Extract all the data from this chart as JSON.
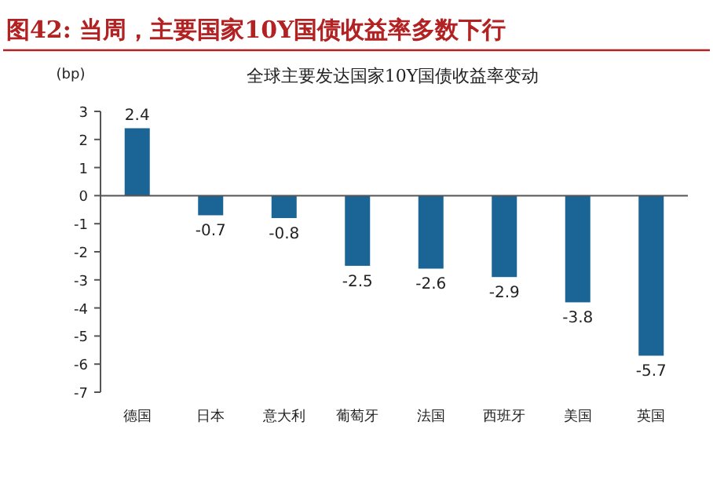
{
  "chart_data": {
    "type": "bar",
    "title": "图42: 当周，主要国家10Y国债收益率多数下行",
    "subtitle": "全球主要发达国家10Y国债收益率变动",
    "ylabel": "(bp)",
    "categories": [
      "德国",
      "日本",
      "意大利",
      "葡萄牙",
      "法国",
      "西班牙",
      "美国",
      "英国"
    ],
    "values": [
      2.4,
      -0.7,
      -0.8,
      -2.5,
      -2.6,
      -2.9,
      -3.8,
      -5.7
    ],
    "color": "#1a6496",
    "ylim": [
      -7,
      3
    ],
    "yticks": [
      -7,
      -6,
      -5,
      -4,
      -3,
      -2,
      -1,
      0,
      1,
      2,
      3
    ],
    "data_labels": true
  }
}
